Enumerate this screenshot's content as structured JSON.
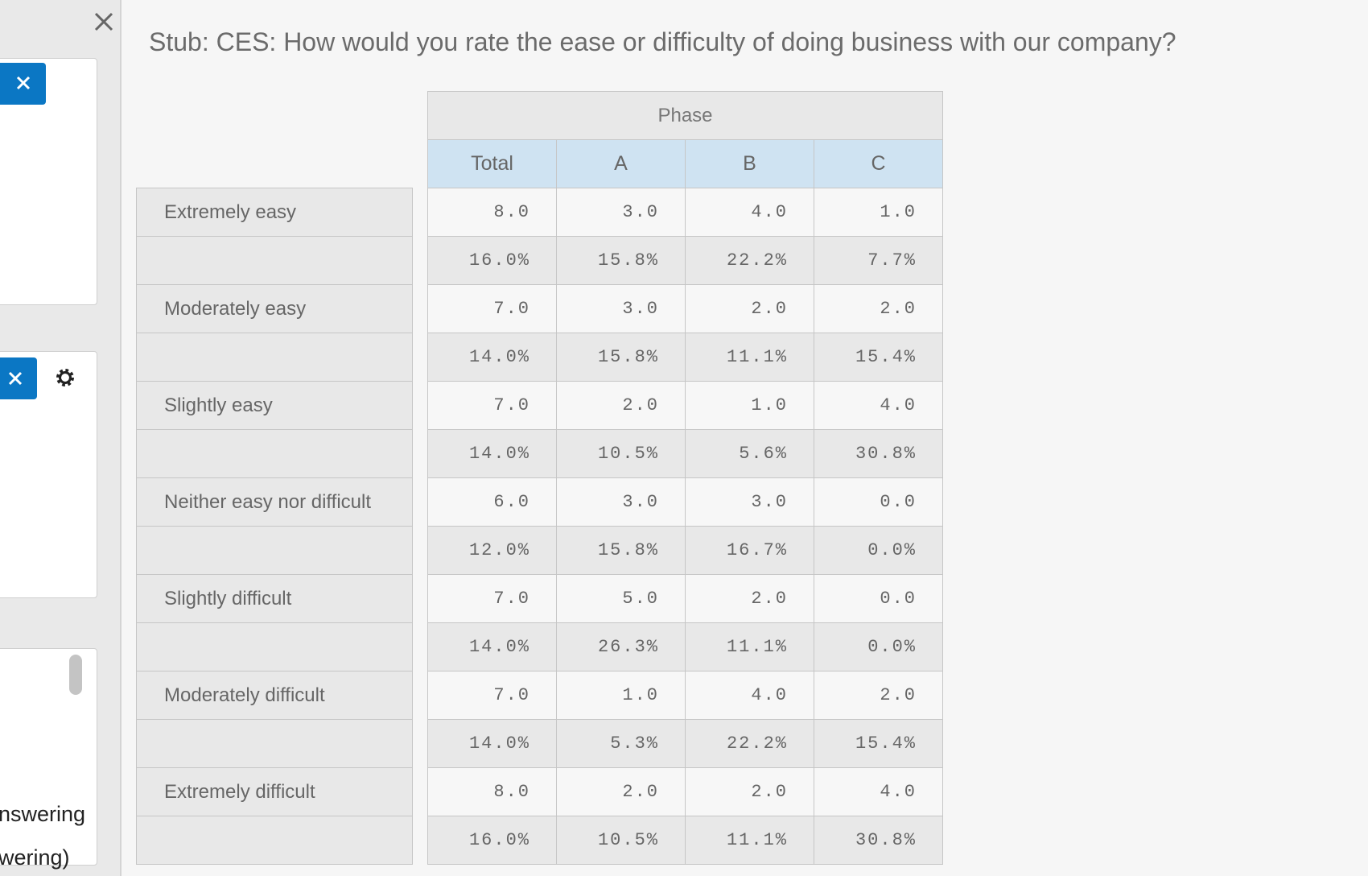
{
  "sidebar": {
    "texts": [
      "nswering",
      "wering)"
    ]
  },
  "title": "Stub: CES: How would you rate the ease or difficulty of doing business with our company?",
  "table": {
    "group_header": "Phase",
    "columns": [
      "Total",
      "A",
      "B",
      "C"
    ],
    "rows": [
      {
        "label": "Extremely easy",
        "count": [
          "8.0",
          "3.0",
          "4.0",
          "1.0"
        ],
        "percent": [
          "16.0%",
          "15.8%",
          "22.2%",
          "7.7%"
        ]
      },
      {
        "label": "Moderately easy",
        "count": [
          "7.0",
          "3.0",
          "2.0",
          "2.0"
        ],
        "percent": [
          "14.0%",
          "15.8%",
          "11.1%",
          "15.4%"
        ]
      },
      {
        "label": "Slightly easy",
        "count": [
          "7.0",
          "2.0",
          "1.0",
          "4.0"
        ],
        "percent": [
          "14.0%",
          "10.5%",
          "5.6%",
          "30.8%"
        ]
      },
      {
        "label": "Neither easy nor difficult",
        "count": [
          "6.0",
          "3.0",
          "3.0",
          "0.0"
        ],
        "percent": [
          "12.0%",
          "15.8%",
          "16.7%",
          "0.0%"
        ]
      },
      {
        "label": "Slightly difficult",
        "count": [
          "7.0",
          "5.0",
          "2.0",
          "0.0"
        ],
        "percent": [
          "14.0%",
          "26.3%",
          "11.1%",
          "0.0%"
        ]
      },
      {
        "label": "Moderately difficult",
        "count": [
          "7.0",
          "1.0",
          "4.0",
          "2.0"
        ],
        "percent": [
          "14.0%",
          "5.3%",
          "22.2%",
          "15.4%"
        ]
      },
      {
        "label": "Extremely difficult",
        "count": [
          "8.0",
          "2.0",
          "2.0",
          "4.0"
        ],
        "percent": [
          "16.0%",
          "10.5%",
          "11.1%",
          "30.8%"
        ]
      }
    ]
  }
}
